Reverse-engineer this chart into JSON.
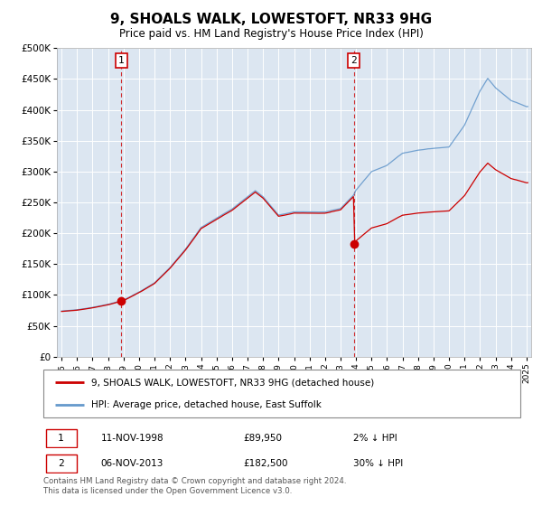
{
  "title": "9, SHOALS WALK, LOWESTOFT, NR33 9HG",
  "subtitle": "Price paid vs. HM Land Registry's House Price Index (HPI)",
  "plot_bg_color": "#dce6f1",
  "ylim": [
    0,
    500000
  ],
  "yticks": [
    0,
    50000,
    100000,
    150000,
    200000,
    250000,
    300000,
    350000,
    400000,
    450000,
    500000
  ],
  "ytick_labels": [
    "£0",
    "£50K",
    "£100K",
    "£150K",
    "£200K",
    "£250K",
    "£300K",
    "£350K",
    "£400K",
    "£450K",
    "£500K"
  ],
  "xlim_start": 1994.7,
  "xlim_end": 2025.3,
  "xticks": [
    1995,
    1996,
    1997,
    1998,
    1999,
    2000,
    2001,
    2002,
    2003,
    2004,
    2005,
    2006,
    2007,
    2008,
    2009,
    2010,
    2011,
    2012,
    2013,
    2014,
    2015,
    2016,
    2017,
    2018,
    2019,
    2020,
    2021,
    2022,
    2023,
    2024,
    2025
  ],
  "purchase1_x": 1998.86,
  "purchase1_y": 89950,
  "purchase1_label": "1",
  "purchase1_date": "11-NOV-1998",
  "purchase1_price": "£89,950",
  "purchase1_hpi": "2% ↓ HPI",
  "purchase2_x": 2013.85,
  "purchase2_y": 182500,
  "purchase2_label": "2",
  "purchase2_date": "06-NOV-2013",
  "purchase2_price": "£182,500",
  "purchase2_hpi": "30% ↓ HPI",
  "legend_line1": "9, SHOALS WALK, LOWESTOFT, NR33 9HG (detached house)",
  "legend_line2": "HPI: Average price, detached house, East Suffolk",
  "footer": "Contains HM Land Registry data © Crown copyright and database right 2024.\nThis data is licensed under the Open Government Licence v3.0.",
  "hpi_color": "#6699cc",
  "price_color": "#cc0000",
  "vline_color": "#cc0000",
  "marker_color": "#cc0000",
  "label_box_color": "#cc0000"
}
